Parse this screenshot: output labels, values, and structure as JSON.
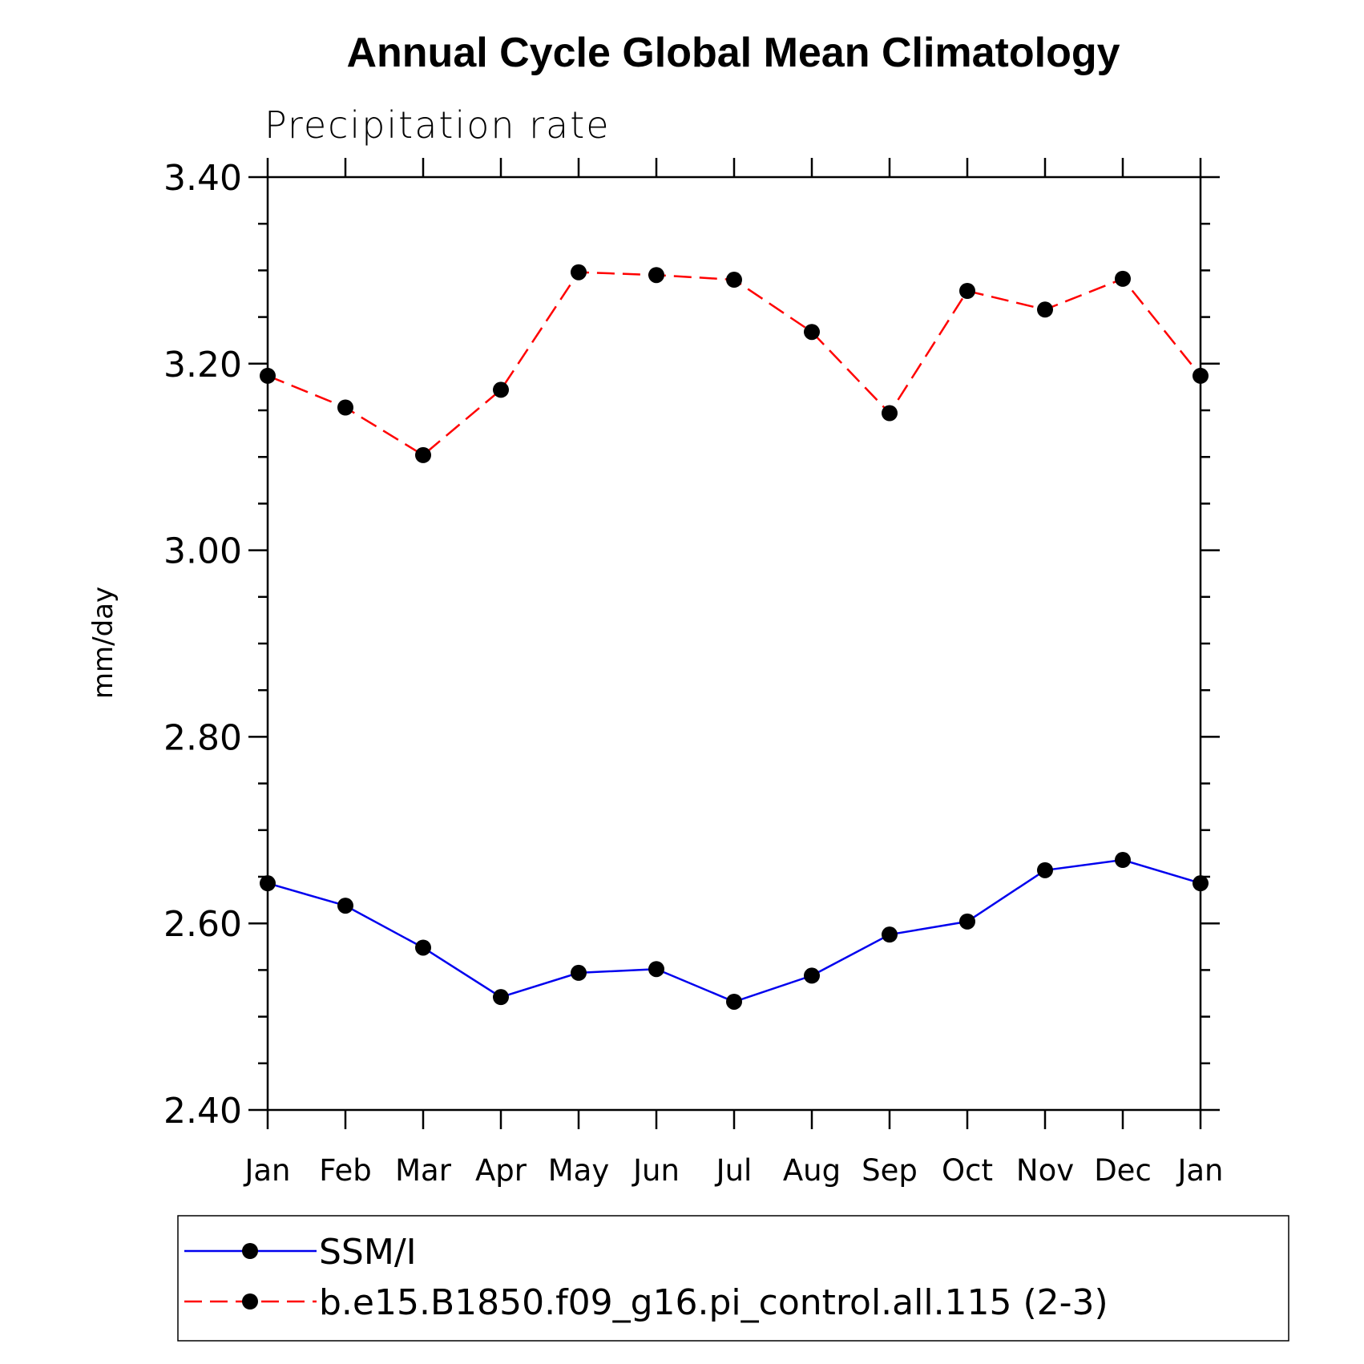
{
  "chart_data": {
    "type": "line",
    "title": "Annual Cycle Global Mean Climatology",
    "subtitle": "Precipitation rate",
    "xlabel": "",
    "ylabel": "mm/day",
    "categories": [
      "Jan",
      "Feb",
      "Mar",
      "Apr",
      "May",
      "Jun",
      "Jul",
      "Aug",
      "Sep",
      "Oct",
      "Nov",
      "Dec",
      "Jan"
    ],
    "ylim": [
      2.4,
      3.4
    ],
    "yticks": [
      2.4,
      2.6,
      2.8,
      3.0,
      3.2,
      3.4
    ],
    "ytick_labels": [
      "2.40",
      "2.60",
      "2.80",
      "3.00",
      "3.20",
      "3.40"
    ],
    "yminor_step": 0.05,
    "grid": false,
    "legend_position": "bottom",
    "series": [
      {
        "name": "SSM/I",
        "color": "#0000ee",
        "dash": "solid",
        "marker": "filled-circle",
        "values": [
          2.643,
          2.619,
          2.574,
          2.521,
          2.547,
          2.551,
          2.516,
          2.544,
          2.588,
          2.602,
          2.657,
          2.668,
          2.643
        ]
      },
      {
        "name": "b.e15.B1850.f09_g16.pi_control.all.115 (2-3)",
        "color": "#ff0000",
        "dash": "dashed",
        "marker": "filled-circle",
        "values": [
          3.187,
          3.153,
          3.102,
          3.172,
          3.298,
          3.295,
          3.29,
          3.234,
          3.147,
          3.278,
          3.258,
          3.291,
          3.187
        ]
      }
    ]
  }
}
